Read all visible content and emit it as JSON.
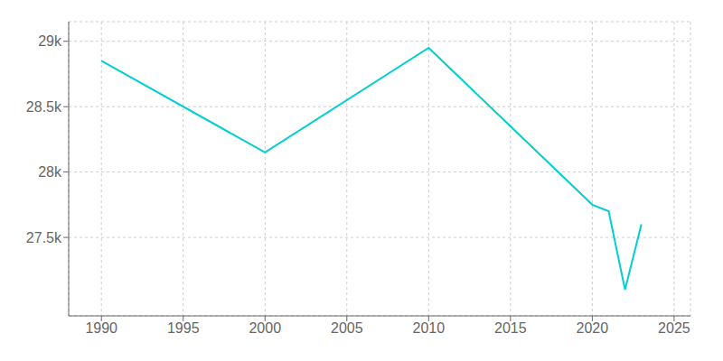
{
  "chart_data": {
    "type": "line",
    "x": [
      1990,
      2000,
      2010,
      2020,
      2021,
      2022,
      2023
    ],
    "values": [
      28850,
      28150,
      28950,
      27750,
      27700,
      27100,
      27600
    ],
    "color": "#00CED1",
    "xlim": [
      1988,
      2026
    ],
    "ylim": [
      26900,
      29150
    ],
    "xticks": [
      1990,
      1995,
      2000,
      2005,
      2010,
      2015,
      2020,
      2025
    ],
    "yticks": [
      {
        "value": 27500,
        "label": "27.5k"
      },
      {
        "value": 28000,
        "label": "28k"
      },
      {
        "value": 28500,
        "label": "28.5k"
      },
      {
        "value": 29000,
        "label": "29k"
      }
    ],
    "grid": true
  }
}
